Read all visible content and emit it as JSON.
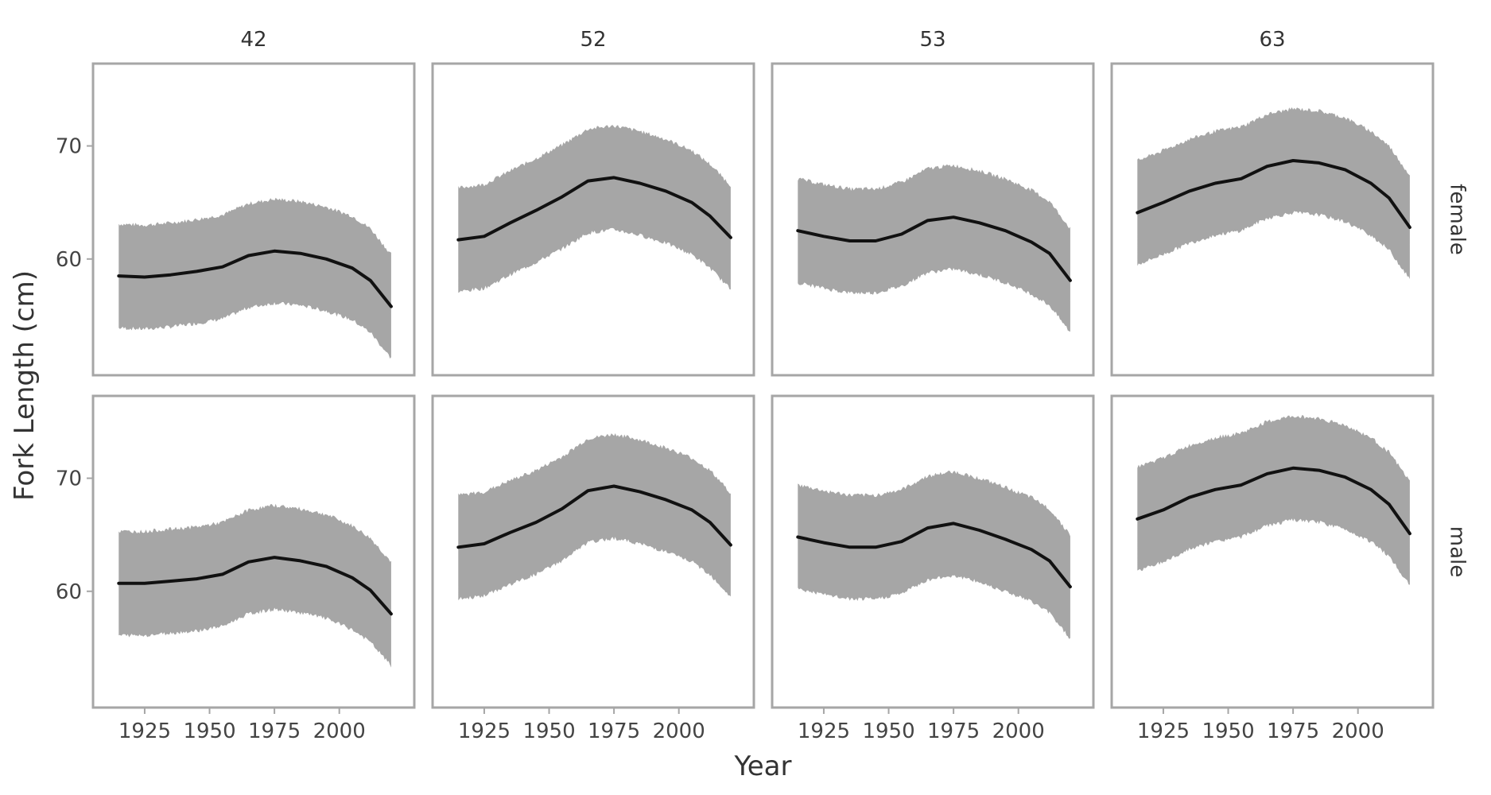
{
  "chart_data": {
    "type": "line",
    "xlabel": "Year",
    "ylabel": "Fork Length (cm)",
    "xlim": [
      1910,
      2024
    ],
    "ylim": [
      50,
      77
    ],
    "x_ticks": [
      1925,
      1950,
      1975,
      2000
    ],
    "y_ticks": [
      60,
      70
    ],
    "grid": false,
    "band_half_width": 4.6,
    "col_facets": [
      "42",
      "52",
      "53",
      "63"
    ],
    "row_facets": [
      "female",
      "male"
    ],
    "colors": {
      "band": "#a6a6a6",
      "line": "#111111",
      "frame": "#a6a6a6",
      "text": "#444444"
    },
    "x": [
      1915,
      1925,
      1935,
      1945,
      1955,
      1965,
      1975,
      1985,
      1995,
      2005,
      2012,
      2020
    ],
    "panels": [
      {
        "row": "female",
        "col": "42",
        "values": [
          58.5,
          58.4,
          58.6,
          58.9,
          59.3,
          60.3,
          60.7,
          60.5,
          60.0,
          59.2,
          58.1,
          55.8
        ]
      },
      {
        "row": "female",
        "col": "52",
        "values": [
          61.7,
          62.0,
          63.2,
          64.3,
          65.5,
          66.9,
          67.2,
          66.7,
          66.0,
          65.0,
          63.8,
          61.9
        ]
      },
      {
        "row": "female",
        "col": "53",
        "values": [
          62.5,
          62.0,
          61.6,
          61.6,
          62.2,
          63.4,
          63.7,
          63.2,
          62.5,
          61.5,
          60.5,
          58.1
        ]
      },
      {
        "row": "female",
        "col": "63",
        "values": [
          64.1,
          65.0,
          66.0,
          66.7,
          67.1,
          68.2,
          68.7,
          68.5,
          67.9,
          66.7,
          65.4,
          62.8
        ]
      },
      {
        "row": "male",
        "col": "42",
        "values": [
          60.7,
          60.7,
          60.9,
          61.1,
          61.5,
          62.6,
          63.0,
          62.7,
          62.2,
          61.2,
          60.1,
          58.0
        ]
      },
      {
        "row": "male",
        "col": "52",
        "values": [
          63.9,
          64.2,
          65.2,
          66.1,
          67.3,
          68.9,
          69.3,
          68.8,
          68.1,
          67.2,
          66.1,
          64.1
        ]
      },
      {
        "row": "male",
        "col": "53",
        "values": [
          64.8,
          64.3,
          63.9,
          63.9,
          64.4,
          65.6,
          66.0,
          65.4,
          64.6,
          63.7,
          62.7,
          60.4
        ]
      },
      {
        "row": "male",
        "col": "63",
        "values": [
          66.4,
          67.2,
          68.3,
          69.0,
          69.4,
          70.4,
          70.9,
          70.7,
          70.1,
          69.0,
          67.7,
          65.1
        ]
      }
    ]
  }
}
